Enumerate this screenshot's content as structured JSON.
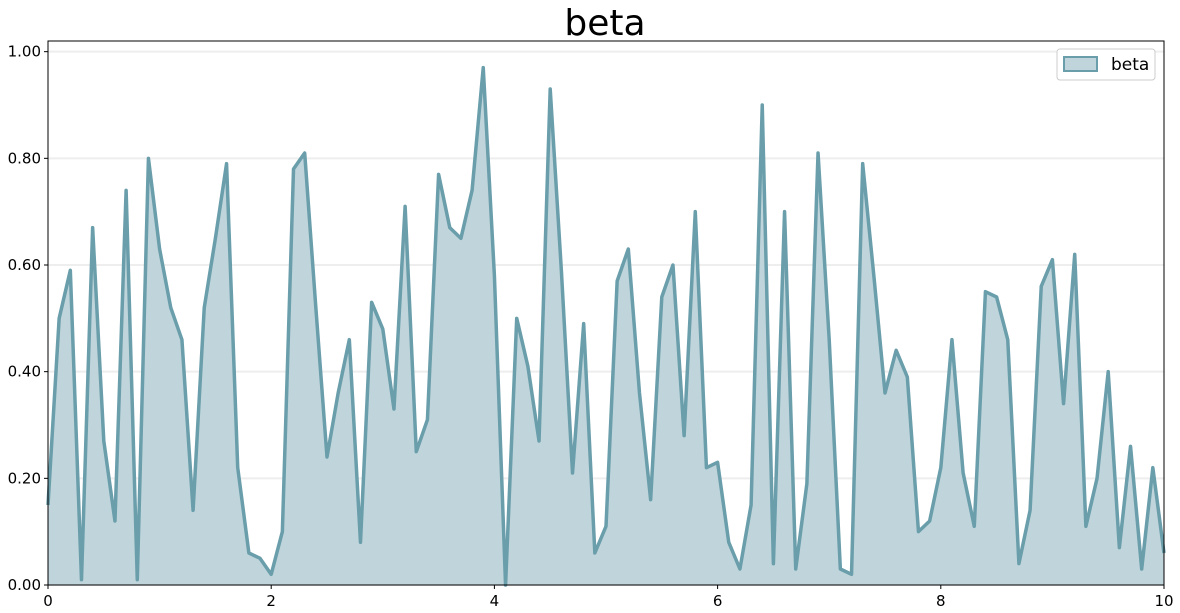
{
  "chart_data": {
    "type": "area",
    "title": "beta",
    "xlabel": "",
    "ylabel": "",
    "xlim": [
      0,
      10
    ],
    "ylim": [
      0,
      1.02
    ],
    "grid": "horizontal",
    "legend_placement": "top-right",
    "x_ticks": [
      {
        "value": 0,
        "label": "0"
      },
      {
        "value": 2,
        "label": "2"
      },
      {
        "value": 4,
        "label": "4"
      },
      {
        "value": 6,
        "label": "6"
      },
      {
        "value": 8,
        "label": "8"
      },
      {
        "value": 10,
        "label": "10"
      }
    ],
    "y_ticks": [
      {
        "value": 0.0,
        "label": "0.00"
      },
      {
        "value": 0.2,
        "label": "0.20"
      },
      {
        "value": 0.4,
        "label": "0.40"
      },
      {
        "value": 0.6,
        "label": "0.60"
      },
      {
        "value": 0.8,
        "label": "0.80"
      },
      {
        "value": 1.0,
        "label": "1.00"
      }
    ],
    "series": [
      {
        "name": "beta",
        "color": "#6a9eab",
        "fill_color": "#c0d5db",
        "x": [
          0.0,
          0.1,
          0.2,
          0.3,
          0.4,
          0.5,
          0.6,
          0.7,
          0.8,
          0.9,
          1.0,
          1.1,
          1.2,
          1.3,
          1.4,
          1.5,
          1.6,
          1.7,
          1.8,
          1.9,
          2.0,
          2.1,
          2.2,
          2.3,
          2.4,
          2.5,
          2.6,
          2.7,
          2.8,
          2.9,
          3.0,
          3.1,
          3.2,
          3.3,
          3.4,
          3.5,
          3.6,
          3.7,
          3.8,
          3.9,
          4.0,
          4.1,
          4.2,
          4.3,
          4.4,
          4.5,
          4.6,
          4.7,
          4.8,
          4.9,
          5.0,
          5.1,
          5.2,
          5.3,
          5.4,
          5.5,
          5.6,
          5.7,
          5.8,
          5.9,
          6.0,
          6.1,
          6.2,
          6.3,
          6.4,
          6.5,
          6.6,
          6.7,
          6.8,
          6.9,
          7.0,
          7.1,
          7.2,
          7.3,
          7.4,
          7.5,
          7.6,
          7.7,
          7.8,
          7.9,
          8.0,
          8.1,
          8.2,
          8.3,
          8.4,
          8.5,
          8.6,
          8.7,
          8.8,
          8.9,
          9.0,
          9.1,
          9.2,
          9.3,
          9.4,
          9.5,
          9.6,
          9.7,
          9.8,
          9.9,
          10.0
        ],
        "values": [
          0.15,
          0.5,
          0.59,
          0.01,
          0.67,
          0.27,
          0.12,
          0.74,
          0.01,
          0.8,
          0.63,
          0.52,
          0.46,
          0.14,
          0.52,
          0.65,
          0.79,
          0.22,
          0.06,
          0.05,
          0.02,
          0.1,
          0.78,
          0.81,
          0.52,
          0.24,
          0.36,
          0.46,
          0.08,
          0.53,
          0.48,
          0.33,
          0.71,
          0.25,
          0.31,
          0.77,
          0.67,
          0.65,
          0.74,
          0.97,
          0.58,
          0.0,
          0.5,
          0.41,
          0.27,
          0.93,
          0.59,
          0.21,
          0.49,
          0.06,
          0.11,
          0.57,
          0.63,
          0.36,
          0.16,
          0.54,
          0.6,
          0.28,
          0.7,
          0.22,
          0.23,
          0.08,
          0.03,
          0.15,
          0.9,
          0.04,
          0.7,
          0.03,
          0.19,
          0.81,
          0.46,
          0.03,
          0.02,
          0.79,
          0.58,
          0.36,
          0.44,
          0.39,
          0.1,
          0.12,
          0.22,
          0.46,
          0.21,
          0.11,
          0.55,
          0.54,
          0.46,
          0.04,
          0.14,
          0.56,
          0.61,
          0.34,
          0.62,
          0.11,
          0.2,
          0.4,
          0.07,
          0.26,
          0.03,
          0.22,
          0.06
        ]
      }
    ]
  }
}
